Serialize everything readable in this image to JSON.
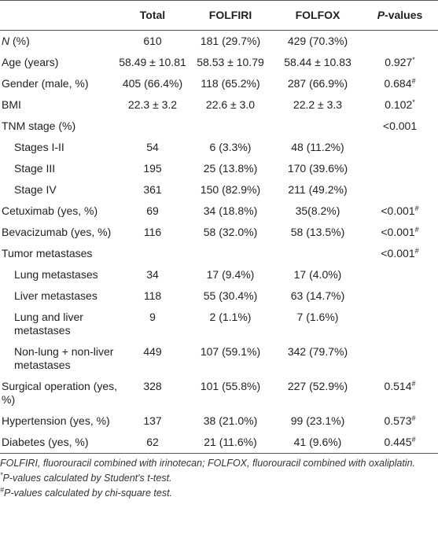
{
  "table": {
    "columns": [
      "Total",
      "FOLFIRI",
      "FOLFOX"
    ],
    "p_header": [
      {
        "text": "P",
        "italic": true
      },
      {
        "text": "-values"
      }
    ],
    "rows": [
      {
        "label": [
          {
            "text": "N",
            "italic": true
          },
          {
            "text": " (%)"
          }
        ],
        "values": [
          "610",
          "181 (29.7%)",
          "429 (70.3%)"
        ]
      },
      {
        "label": "Age (years)",
        "values": [
          "58.49 ± 10.81",
          "58.53 ± 10.79",
          "58.44 ± 10.83"
        ],
        "p": "0.927",
        "p_sup": "*"
      },
      {
        "label": "Gender (male, %)",
        "values": [
          "405 (66.4%)",
          "118 (65.2%)",
          "287 (66.9%)"
        ],
        "p": "0.684",
        "p_sup": "#"
      },
      {
        "label": "BMI",
        "values": [
          "22.3 ± 3.2",
          "22.6 ± 3.0",
          "22.2 ± 3.3"
        ],
        "p": "0.102",
        "p_sup": "*"
      },
      {
        "label": "TNM stage (%)",
        "p": "<0.001",
        "children": [
          {
            "label": "Stages I-II",
            "values": [
              "54",
              "6 (3.3%)",
              "48 (11.2%)"
            ]
          },
          {
            "label": "Stage III",
            "values": [
              "195",
              "25 (13.8%)",
              "170 (39.6%)"
            ]
          },
          {
            "label": "Stage IV",
            "values": [
              "361",
              "150 (82.9%)",
              "211 (49.2%)"
            ]
          }
        ]
      },
      {
        "label": "Cetuximab (yes, %)",
        "values": [
          "69",
          "34 (18.8%)",
          "35(8.2%)"
        ],
        "p": "<0.001",
        "p_sup": "#"
      },
      {
        "label": "Bevacizumab (yes, %)",
        "values": [
          "116",
          "58 (32.0%)",
          "58 (13.5%)"
        ],
        "p": "<0.001",
        "p_sup": "#"
      },
      {
        "label": "Tumor metastases",
        "p": "<0.001",
        "p_sup": "#",
        "children": [
          {
            "label": "Lung metastases",
            "values": [
              "34",
              "17 (9.4%)",
              "17 (4.0%)"
            ]
          },
          {
            "label": "Liver metastases",
            "values": [
              "118",
              "55 (30.4%)",
              "63 (14.7%)"
            ]
          },
          {
            "label": "Lung and liver metastases",
            "values": [
              "9",
              "2 (1.1%)",
              "7 (1.6%)"
            ]
          },
          {
            "label": "Non-lung + non-liver metastases",
            "values": [
              "449",
              "107 (59.1%)",
              "342 (79.7%)"
            ]
          }
        ]
      },
      {
        "label": "Surgical operation (yes, %)",
        "values": [
          "328",
          "101 (55.8%)",
          "227 (52.9%)"
        ],
        "p": "0.514",
        "p_sup": "#"
      },
      {
        "label": "Hypertension (yes, %)",
        "values": [
          "137",
          "38 (21.0%)",
          "99 (23.1%)"
        ],
        "p": "0.573",
        "p_sup": "#"
      },
      {
        "label": "Diabetes (yes, %)",
        "values": [
          "62",
          "21 (11.6%)",
          "41 (9.6%)"
        ],
        "p": "0.445",
        "p_sup": "#"
      }
    ],
    "footnotes": [
      {
        "text": "FOLFIRI, fluorouracil combined with irinotecan; FOLFOX, fluorouracil combined with oxaliplatin."
      },
      {
        "mark": "*",
        "text": "P-values calculated by Student's t-test."
      },
      {
        "mark": "#",
        "text": "P-values calculated by chi-square test."
      }
    ]
  }
}
